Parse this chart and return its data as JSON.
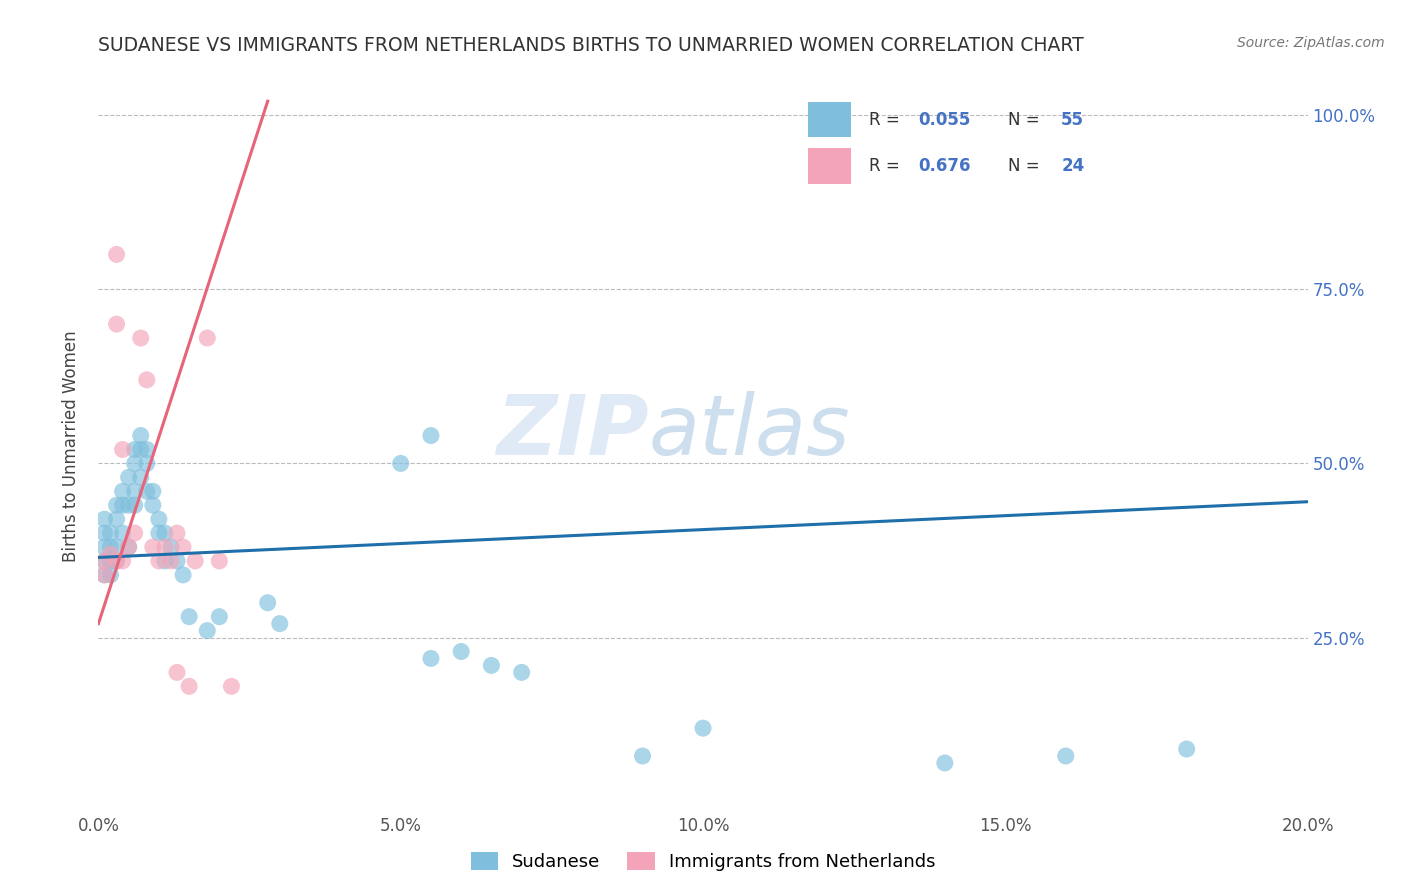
{
  "title": "SUDANESE VS IMMIGRANTS FROM NETHERLANDS BIRTHS TO UNMARRIED WOMEN CORRELATION CHART",
  "source": "Source: ZipAtlas.com",
  "ylabel": "Births to Unmarried Women",
  "xlim": [
    0.0,
    0.2
  ],
  "ylim": [
    0.0,
    1.05
  ],
  "yticks": [
    0.25,
    0.5,
    0.75,
    1.0
  ],
  "ytick_labels": [
    "25.0%",
    "50.0%",
    "75.0%",
    "100.0%"
  ],
  "xticks": [
    0.0,
    0.05,
    0.1,
    0.15,
    0.2
  ],
  "xtick_labels": [
    "0.0%",
    "5.0%",
    "10.0%",
    "15.0%",
    "20.0%"
  ],
  "legend_bottom": [
    "Sudanese",
    "Immigrants from Netherlands"
  ],
  "color_blue": "#7fbfdd",
  "color_pink": "#f4a4b8",
  "line_color_blue": "#1f6faa",
  "line_color_pink": "#e8647a",
  "blue_line_x0": 0.0,
  "blue_line_y0": 0.365,
  "blue_line_x1": 0.2,
  "blue_line_y1": 0.445,
  "pink_line_x0": 0.0,
  "pink_line_y0": 0.27,
  "pink_line_x1": 0.028,
  "pink_line_y1": 1.02,
  "sudanese_x": [
    0.001,
    0.001,
    0.001,
    0.001,
    0.001,
    0.002,
    0.002,
    0.002,
    0.002,
    0.003,
    0.003,
    0.003,
    0.003,
    0.004,
    0.004,
    0.004,
    0.005,
    0.005,
    0.005,
    0.006,
    0.006,
    0.006,
    0.006,
    0.007,
    0.007,
    0.007,
    0.008,
    0.008,
    0.008,
    0.009,
    0.009,
    0.01,
    0.01,
    0.011,
    0.011,
    0.012,
    0.013,
    0.014,
    0.015,
    0.018,
    0.02,
    0.028,
    0.03,
    0.05,
    0.055,
    0.09,
    0.1,
    0.14,
    0.16,
    0.18,
    0.055,
    0.06,
    0.065,
    0.07
  ],
  "sudanese_y": [
    0.38,
    0.4,
    0.42,
    0.36,
    0.34,
    0.38,
    0.4,
    0.36,
    0.34,
    0.38,
    0.36,
    0.42,
    0.44,
    0.46,
    0.44,
    0.4,
    0.48,
    0.44,
    0.38,
    0.52,
    0.5,
    0.46,
    0.44,
    0.54,
    0.52,
    0.48,
    0.52,
    0.5,
    0.46,
    0.46,
    0.44,
    0.42,
    0.4,
    0.4,
    0.36,
    0.38,
    0.36,
    0.34,
    0.28,
    0.26,
    0.28,
    0.3,
    0.27,
    0.5,
    0.54,
    0.08,
    0.12,
    0.07,
    0.08,
    0.09,
    0.22,
    0.23,
    0.21,
    0.2
  ],
  "netherlands_x": [
    0.001,
    0.001,
    0.002,
    0.003,
    0.003,
    0.004,
    0.005,
    0.006,
    0.007,
    0.008,
    0.009,
    0.01,
    0.011,
    0.012,
    0.013,
    0.014,
    0.016,
    0.018,
    0.02,
    0.022,
    0.003,
    0.004,
    0.013,
    0.015
  ],
  "netherlands_y": [
    0.34,
    0.36,
    0.37,
    0.36,
    0.8,
    0.36,
    0.38,
    0.4,
    0.68,
    0.62,
    0.38,
    0.36,
    0.38,
    0.36,
    0.4,
    0.38,
    0.36,
    0.68,
    0.36,
    0.18,
    0.7,
    0.52,
    0.2,
    0.18
  ]
}
